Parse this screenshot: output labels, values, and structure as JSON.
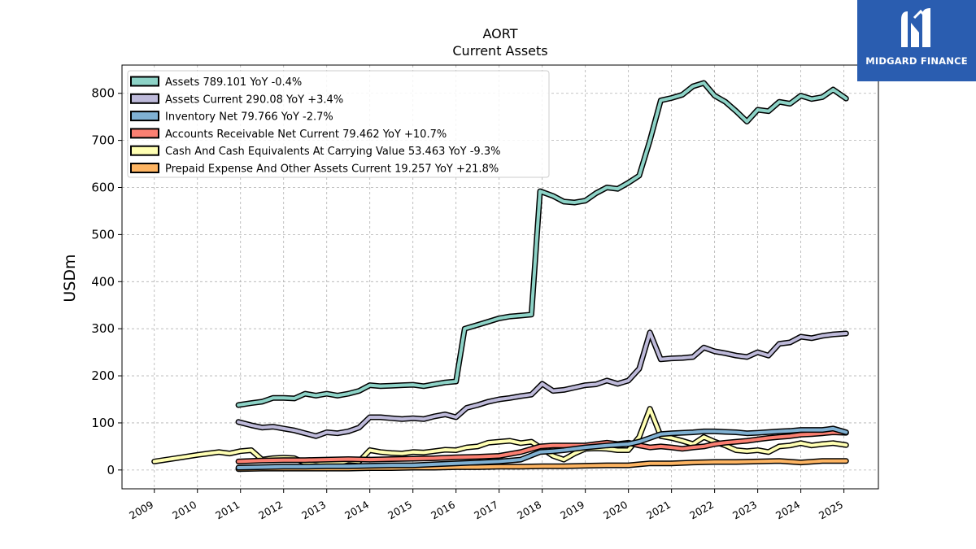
{
  "chart_data": {
    "type": "line",
    "title": "AORT",
    "subtitle": "Current  Assets",
    "ylabel": "USDm",
    "xlabel": "",
    "ylim": [
      -40,
      860
    ],
    "xlim": [
      2008.25,
      2025.8
    ],
    "y_ticks": [
      0,
      100,
      200,
      300,
      400,
      500,
      600,
      700,
      800
    ],
    "x_ticks": [
      "2009",
      "2010",
      "2011",
      "2012",
      "2013",
      "2014",
      "2015",
      "2016",
      "2017",
      "2018",
      "2019",
      "2020",
      "2021",
      "2022",
      "2023",
      "2024",
      "2025"
    ],
    "grid": true,
    "legend_position": "top-left",
    "series": [
      {
        "name": "Assets",
        "legend": "Assets  789.101 YoY -0.4%",
        "color": "#8dd3c7",
        "x": [
          2010.95,
          2011.25,
          2011.5,
          2011.75,
          2012.0,
          2012.25,
          2012.5,
          2012.75,
          2013.0,
          2013.25,
          2013.5,
          2013.75,
          2014.0,
          2014.25,
          2014.5,
          2014.75,
          2015.0,
          2015.25,
          2015.5,
          2015.75,
          2016.0,
          2016.2,
          2016.5,
          2016.75,
          2017.0,
          2017.25,
          2017.5,
          2017.75,
          2017.95,
          2018.25,
          2018.5,
          2018.75,
          2019.0,
          2019.25,
          2019.5,
          2019.75,
          2020.0,
          2020.25,
          2020.5,
          2020.75,
          2021.0,
          2021.25,
          2021.5,
          2021.75,
          2022.0,
          2022.25,
          2022.5,
          2022.75,
          2023.0,
          2023.25,
          2023.5,
          2023.75,
          2024.0,
          2024.25,
          2024.5,
          2024.75,
          2025.05
        ],
        "y": [
          138,
          142,
          145,
          153,
          153,
          152,
          162,
          158,
          162,
          158,
          162,
          168,
          180,
          178,
          179,
          180,
          181,
          178,
          182,
          186,
          188,
          300,
          308,
          315,
          322,
          326,
          328,
          330,
          592,
          582,
          570,
          568,
          572,
          588,
          600,
          597,
          610,
          625,
          700,
          785,
          790,
          797,
          815,
          822,
          795,
          782,
          762,
          740,
          765,
          762,
          782,
          778,
          795,
          788,
          792,
          808,
          789
        ]
      },
      {
        "name": "Assets Current",
        "legend": "Assets Current  290.08 YoY +3.4%",
        "color": "#bebada",
        "x": [
          2010.95,
          2011.25,
          2011.5,
          2011.75,
          2012.0,
          2012.25,
          2012.5,
          2012.75,
          2013.0,
          2013.25,
          2013.5,
          2013.75,
          2014.0,
          2014.25,
          2014.5,
          2014.75,
          2015.0,
          2015.25,
          2015.5,
          2015.75,
          2016.0,
          2016.25,
          2016.5,
          2016.75,
          2017.0,
          2017.25,
          2017.5,
          2017.75,
          2018.0,
          2018.25,
          2018.5,
          2018.75,
          2019.0,
          2019.25,
          2019.5,
          2019.75,
          2020.0,
          2020.25,
          2020.5,
          2020.75,
          2021.0,
          2021.25,
          2021.5,
          2021.75,
          2022.0,
          2022.25,
          2022.5,
          2022.75,
          2023.0,
          2023.25,
          2023.5,
          2023.75,
          2024.0,
          2024.25,
          2024.5,
          2024.75,
          2025.05
        ],
        "y": [
          102,
          95,
          90,
          92,
          88,
          84,
          78,
          72,
          80,
          78,
          82,
          90,
          112,
          112,
          110,
          108,
          110,
          108,
          114,
          118,
          112,
          132,
          138,
          145,
          150,
          153,
          157,
          160,
          183,
          168,
          170,
          175,
          180,
          182,
          190,
          183,
          190,
          215,
          292,
          235,
          237,
          238,
          240,
          260,
          252,
          248,
          243,
          240,
          250,
          243,
          268,
          271,
          283,
          280,
          285,
          288,
          290
        ]
      },
      {
        "name": "Inventory Net",
        "legend": "Inventory Net  79.766 YoY -2.7%",
        "color": "#80b1d3",
        "x": [
          2010.95,
          2011.5,
          2012.0,
          2012.5,
          2013.0,
          2013.5,
          2014.0,
          2014.5,
          2015.0,
          2015.5,
          2016.0,
          2016.5,
          2017.0,
          2017.5,
          2017.95,
          2018.25,
          2018.5,
          2019.0,
          2019.5,
          2020.0,
          2020.25,
          2020.5,
          2020.75,
          2021.0,
          2021.5,
          2021.75,
          2022.0,
          2022.5,
          2022.75,
          2023.0,
          2023.5,
          2023.75,
          2024.0,
          2024.5,
          2024.75,
          2025.05
        ],
        "y": [
          5,
          6,
          7,
          7,
          8,
          8,
          9,
          10,
          10,
          12,
          14,
          16,
          18,
          22,
          38,
          40,
          42,
          48,
          52,
          55,
          60,
          68,
          76,
          78,
          80,
          82,
          82,
          80,
          78,
          79,
          82,
          83,
          85,
          85,
          88,
          80
        ]
      },
      {
        "name": "Accounts Receivable Net Current",
        "legend": "Accounts Receivable Net Current  79.462 YoY +10.7%",
        "color": "#fb8072",
        "x": [
          2010.95,
          2011.5,
          2012.0,
          2012.5,
          2013.0,
          2013.5,
          2014.0,
          2014.5,
          2015.0,
          2015.5,
          2016.0,
          2016.5,
          2017.0,
          2017.5,
          2017.95,
          2018.25,
          2018.5,
          2019.0,
          2019.25,
          2019.5,
          2019.75,
          2020.0,
          2020.25,
          2020.5,
          2020.75,
          2021.0,
          2021.25,
          2021.5,
          2021.75,
          2022.0,
          2022.25,
          2022.5,
          2022.75,
          2023.0,
          2023.25,
          2023.5,
          2023.75,
          2024.0,
          2024.25,
          2024.5,
          2024.75,
          2025.05
        ],
        "y": [
          18,
          20,
          21,
          21,
          22,
          23,
          22,
          23,
          24,
          25,
          27,
          28,
          30,
          38,
          50,
          52,
          52,
          52,
          55,
          58,
          55,
          58,
          52,
          48,
          50,
          48,
          45,
          48,
          50,
          55,
          58,
          60,
          62,
          65,
          68,
          70,
          72,
          75,
          76,
          78,
          80,
          79
        ]
      },
      {
        "name": "Cash And Cash Equivalents At Carrying Value",
        "legend": "Cash And Cash Equivalents At Carrying Value  53.463 YoY -9.3%",
        "color": "#ffffb3",
        "x": [
          2009.0,
          2009.5,
          2010.0,
          2010.5,
          2010.75,
          2011.0,
          2011.25,
          2011.5,
          2011.75,
          2012.0,
          2012.25,
          2012.5,
          2012.75,
          2013.0,
          2013.25,
          2013.5,
          2013.75,
          2014.0,
          2014.25,
          2014.5,
          2014.75,
          2015.0,
          2015.25,
          2015.5,
          2015.75,
          2016.0,
          2016.25,
          2016.5,
          2016.75,
          2017.0,
          2017.25,
          2017.5,
          2017.75,
          2018.0,
          2018.25,
          2018.5,
          2018.75,
          2019.0,
          2019.25,
          2019.5,
          2019.75,
          2020.0,
          2020.25,
          2020.5,
          2020.75,
          2021.0,
          2021.25,
          2021.5,
          2021.75,
          2022.0,
          2022.25,
          2022.5,
          2022.75,
          2023.0,
          2023.25,
          2023.5,
          2023.75,
          2024.0,
          2024.25,
          2024.5,
          2024.75,
          2025.05
        ],
        "y": [
          18,
          25,
          32,
          38,
          35,
          40,
          42,
          22,
          25,
          26,
          25,
          15,
          18,
          15,
          14,
          20,
          18,
          42,
          38,
          36,
          35,
          38,
          37,
          40,
          43,
          42,
          48,
          50,
          58,
          60,
          62,
          57,
          60,
          45,
          30,
          22,
          35,
          45,
          46,
          45,
          42,
          42,
          70,
          130,
          72,
          68,
          62,
          55,
          70,
          60,
          52,
          42,
          40,
          42,
          38,
          50,
          52,
          57,
          52,
          55,
          57,
          53
        ]
      },
      {
        "name": "Prepaid Expense And Other Assets Current",
        "legend": "Prepaid Expense And Other Assets Current  19.257 YoY +21.8%",
        "color": "#fdb462",
        "x": [
          2010.95,
          2011.5,
          2012.0,
          2012.5,
          2013.0,
          2013.5,
          2014.0,
          2014.5,
          2015.0,
          2015.5,
          2016.0,
          2016.5,
          2017.0,
          2017.5,
          2018.0,
          2018.5,
          2019.0,
          2019.5,
          2020.0,
          2020.25,
          2020.5,
          2021.0,
          2021.5,
          2022.0,
          2022.5,
          2023.0,
          2023.5,
          2024.0,
          2024.5,
          2025.05
        ],
        "y": [
          2,
          3,
          3,
          3,
          3,
          3,
          4,
          4,
          5,
          5,
          6,
          6,
          7,
          7,
          8,
          8,
          9,
          10,
          10,
          12,
          14,
          14,
          16,
          17,
          17,
          18,
          19,
          16,
          19,
          19
        ]
      }
    ]
  },
  "brand": {
    "name": "MIDGARD FINANCE",
    "bg_color": "#2a5db0"
  }
}
